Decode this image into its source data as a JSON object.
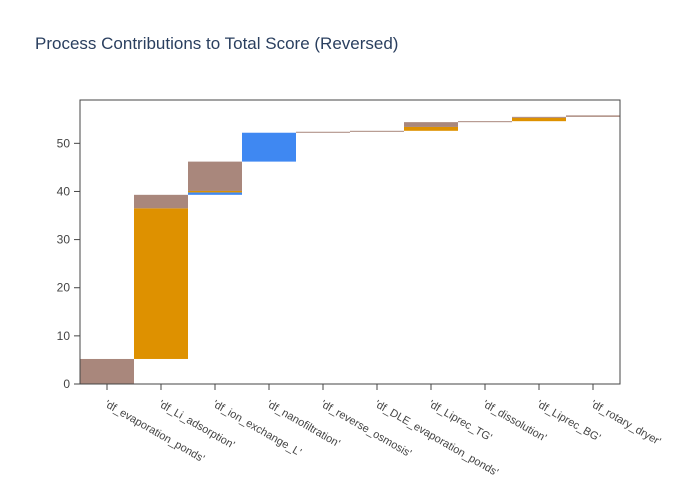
{
  "colors": {
    "brown": "#a9877c",
    "orange": "#de9100",
    "blue": "#3f88f2",
    "axis": "#444444",
    "title": "#2a3f5f"
  },
  "chart_data": {
    "type": "bar",
    "stacked": "waterfall",
    "title": "Process Contributions to Total Score (Reversed)",
    "xlabel": "",
    "ylabel": "",
    "ylim": [
      0,
      59
    ],
    "yticks": [
      0,
      10,
      20,
      30,
      40,
      50
    ],
    "grid": false,
    "legend": "none",
    "categories": [
      "'df_evaporation_ponds'",
      "'df_Li_adsorption'",
      "'df_ion_exchange_L'",
      "'df_nanofiltration'",
      "'df_reverse_osmosis'",
      "'df_DLE_evaporation_ponds'",
      "'df_Liprec_TG'",
      "'df_dissolution'",
      "'df_Liprec_BG'",
      "'df_rotary_dryer'"
    ],
    "segments": [
      [
        {
          "base": 0,
          "value": 5.2,
          "color": "brown"
        }
      ],
      [
        {
          "base": 5.2,
          "value": 31.3,
          "color": "orange"
        },
        {
          "base": 36.5,
          "value": 2.8,
          "color": "brown"
        }
      ],
      [
        {
          "base": 39.3,
          "value": 0.5,
          "color": "blue"
        },
        {
          "base": 39.8,
          "value": 0.3,
          "color": "orange"
        },
        {
          "base": 40.1,
          "value": 6.1,
          "color": "brown"
        }
      ],
      [
        {
          "base": 46.2,
          "value": 6.0,
          "color": "blue"
        }
      ],
      [
        {
          "base": 52.2,
          "value": 0.2,
          "color": "brown"
        }
      ],
      [
        {
          "base": 52.4,
          "value": 0.2,
          "color": "brown"
        }
      ],
      [
        {
          "base": 52.6,
          "value": 0.8,
          "color": "orange"
        },
        {
          "base": 53.4,
          "value": 1.0,
          "color": "brown"
        }
      ],
      [
        {
          "base": 54.4,
          "value": 0.2,
          "color": "brown"
        }
      ],
      [
        {
          "base": 54.6,
          "value": 0.7,
          "color": "orange"
        },
        {
          "base": 55.3,
          "value": 0.2,
          "color": "brown"
        }
      ],
      [
        {
          "base": 55.5,
          "value": 0.3,
          "color": "brown"
        }
      ]
    ]
  }
}
